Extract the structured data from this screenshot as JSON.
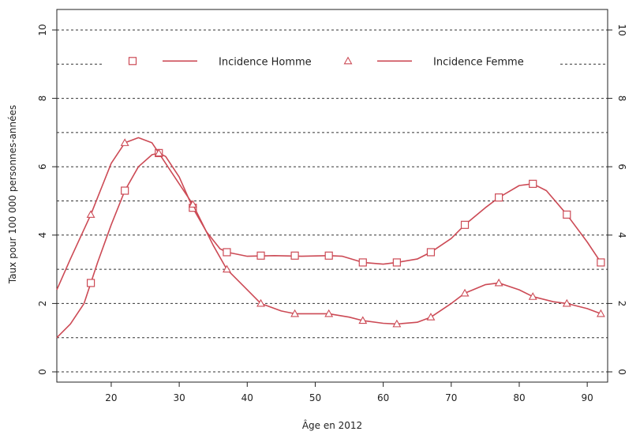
{
  "chart_data": {
    "type": "line",
    "xlabel": "Âge en 2012",
    "ylabel": "Taux pour 100 000 personnes-années",
    "xlim": [
      12,
      93
    ],
    "ylim": [
      -0.3,
      10.6
    ],
    "x_ticks": [
      20,
      30,
      40,
      50,
      60,
      70,
      80,
      90
    ],
    "y_ticks": [
      0,
      2,
      4,
      6,
      8,
      10
    ],
    "y_gridlines": [
      0,
      1,
      2,
      3,
      4,
      5,
      6,
      7,
      8,
      9,
      10
    ],
    "grid": true,
    "legend_position": "top",
    "color": "#cc4a55",
    "series": [
      {
        "name": "Incidence Homme",
        "marker": "square",
        "points": [
          [
            17,
            2.6
          ],
          [
            22,
            5.3
          ],
          [
            27,
            6.4
          ],
          [
            32,
            4.8
          ],
          [
            37,
            3.5
          ],
          [
            42,
            3.4
          ],
          [
            47,
            3.4
          ],
          [
            52,
            3.4
          ],
          [
            57,
            3.2
          ],
          [
            62,
            3.2
          ],
          [
            67,
            3.5
          ],
          [
            72,
            4.3
          ],
          [
            77,
            5.1
          ],
          [
            82,
            5.5
          ],
          [
            87,
            4.6
          ],
          [
            92,
            3.2
          ]
        ],
        "curve": [
          [
            12,
            1.0
          ],
          [
            14,
            1.4
          ],
          [
            16,
            2.0
          ],
          [
            17,
            2.6
          ],
          [
            18,
            3.2
          ],
          [
            20,
            4.3
          ],
          [
            22,
            5.3
          ],
          [
            24,
            6.0
          ],
          [
            26,
            6.35
          ],
          [
            27,
            6.4
          ],
          [
            28,
            6.3
          ],
          [
            30,
            5.7
          ],
          [
            32,
            4.8
          ],
          [
            34,
            4.1
          ],
          [
            36,
            3.6
          ],
          [
            37,
            3.5
          ],
          [
            40,
            3.38
          ],
          [
            44,
            3.4
          ],
          [
            48,
            3.38
          ],
          [
            52,
            3.4
          ],
          [
            54,
            3.38
          ],
          [
            57,
            3.2
          ],
          [
            60,
            3.15
          ],
          [
            62,
            3.2
          ],
          [
            65,
            3.3
          ],
          [
            67,
            3.5
          ],
          [
            70,
            3.9
          ],
          [
            72,
            4.3
          ],
          [
            75,
            4.8
          ],
          [
            77,
            5.1
          ],
          [
            80,
            5.45
          ],
          [
            82,
            5.5
          ],
          [
            84,
            5.3
          ],
          [
            87,
            4.6
          ],
          [
            90,
            3.8
          ],
          [
            92,
            3.2
          ]
        ]
      },
      {
        "name": "Incidence Femme",
        "marker": "triangle",
        "points": [
          [
            17,
            4.6
          ],
          [
            22,
            6.7
          ],
          [
            27,
            6.4
          ],
          [
            32,
            4.9
          ],
          [
            37,
            3.0
          ],
          [
            42,
            2.0
          ],
          [
            47,
            1.7
          ],
          [
            52,
            1.7
          ],
          [
            57,
            1.5
          ],
          [
            62,
            1.4
          ],
          [
            67,
            1.6
          ],
          [
            72,
            2.3
          ],
          [
            77,
            2.6
          ],
          [
            82,
            2.2
          ],
          [
            87,
            2.0
          ],
          [
            92,
            1.7
          ]
        ],
        "curve": [
          [
            12,
            2.4
          ],
          [
            14,
            3.3
          ],
          [
            17,
            4.6
          ],
          [
            20,
            6.1
          ],
          [
            22,
            6.7
          ],
          [
            24,
            6.85
          ],
          [
            26,
            6.7
          ],
          [
            27,
            6.4
          ],
          [
            29,
            5.8
          ],
          [
            32,
            4.9
          ],
          [
            35,
            3.7
          ],
          [
            37,
            3.0
          ],
          [
            40,
            2.4
          ],
          [
            42,
            2.0
          ],
          [
            45,
            1.78
          ],
          [
            47,
            1.7
          ],
          [
            50,
            1.7
          ],
          [
            52,
            1.7
          ],
          [
            55,
            1.6
          ],
          [
            57,
            1.5
          ],
          [
            60,
            1.42
          ],
          [
            62,
            1.4
          ],
          [
            65,
            1.45
          ],
          [
            67,
            1.6
          ],
          [
            70,
            2.0
          ],
          [
            72,
            2.3
          ],
          [
            75,
            2.55
          ],
          [
            77,
            2.6
          ],
          [
            80,
            2.4
          ],
          [
            82,
            2.2
          ],
          [
            85,
            2.05
          ],
          [
            87,
            2.0
          ],
          [
            90,
            1.85
          ],
          [
            92,
            1.7
          ]
        ]
      }
    ]
  }
}
